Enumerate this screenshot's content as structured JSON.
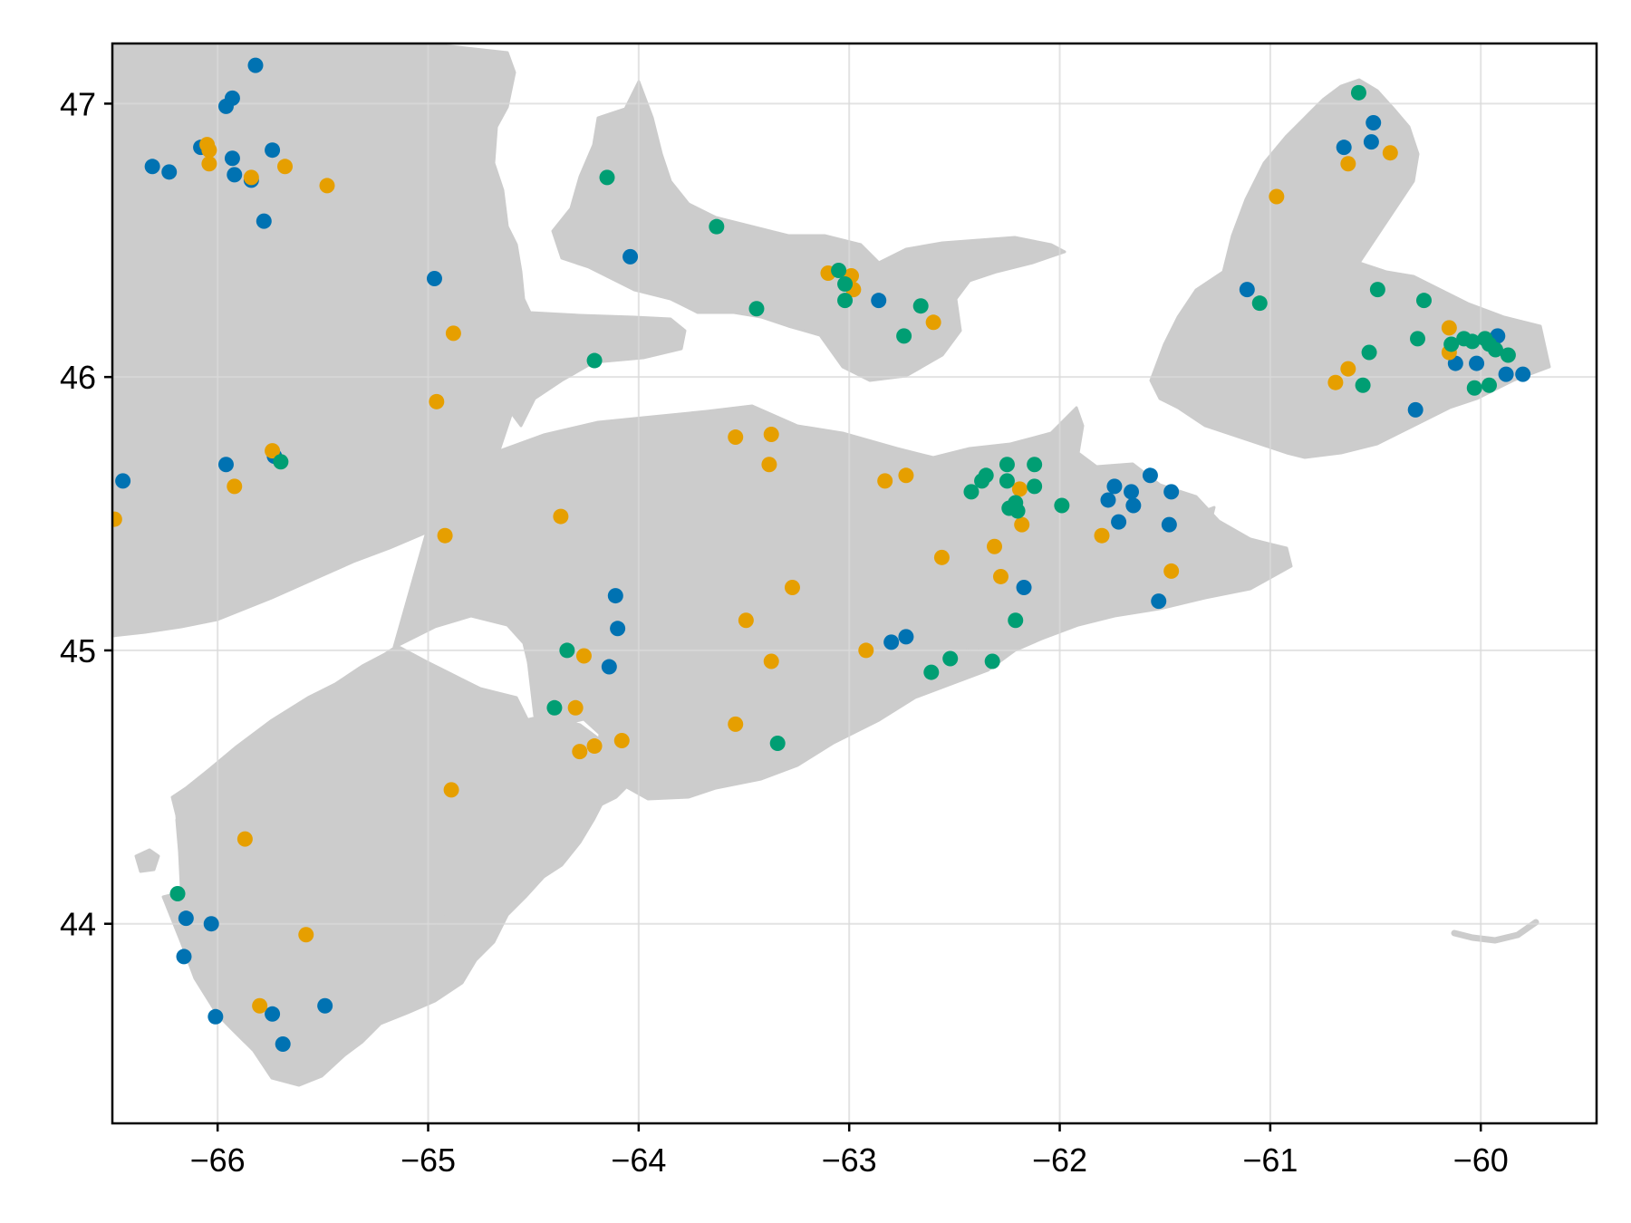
{
  "colors": {
    "land": "#cccccc",
    "grid": "#e3e3e3",
    "frame": "#000000",
    "series": [
      "#0072b2",
      "#e69f00",
      "#009e73"
    ]
  },
  "chart_data": {
    "type": "scatter",
    "xlim": [
      -66.5,
      -59.45
    ],
    "ylim": [
      43.27,
      47.22
    ],
    "grid": true,
    "x_ticks": [
      -66,
      -65,
      -64,
      -63,
      -62,
      -61,
      -60
    ],
    "y_ticks": [
      44,
      45,
      46,
      47
    ],
    "x_tick_labels": [
      "−66",
      "−65",
      "−64",
      "−63",
      "−62",
      "−61",
      "−60"
    ],
    "y_tick_labels": [
      "44",
      "45",
      "46",
      "47"
    ],
    "series": [
      {
        "points": [
          [
            -65.82,
            47.14
          ],
          [
            -65.93,
            47.02
          ],
          [
            -65.96,
            46.99
          ],
          [
            -66.08,
            46.84
          ],
          [
            -65.74,
            46.83
          ],
          [
            -66.31,
            46.77
          ],
          [
            -66.23,
            46.75
          ],
          [
            -65.93,
            46.8
          ],
          [
            -65.92,
            46.74
          ],
          [
            -65.84,
            46.72
          ],
          [
            -65.78,
            46.57
          ],
          [
            -64.04,
            46.44
          ],
          [
            -64.97,
            46.36
          ],
          [
            -62.86,
            46.28
          ],
          [
            -65.96,
            45.68
          ],
          [
            -65.73,
            45.71
          ],
          [
            -66.45,
            45.62
          ],
          [
            -64.11,
            45.2
          ],
          [
            -64.1,
            45.08
          ],
          [
            -64.14,
            44.94
          ],
          [
            -62.8,
            45.03
          ],
          [
            -62.73,
            45.05
          ],
          [
            -62.17,
            45.23
          ],
          [
            -61.57,
            45.64
          ],
          [
            -61.74,
            45.6
          ],
          [
            -61.66,
            45.58
          ],
          [
            -61.47,
            45.58
          ],
          [
            -61.77,
            45.55
          ],
          [
            -61.65,
            45.53
          ],
          [
            -61.72,
            45.47
          ],
          [
            -61.48,
            45.46
          ],
          [
            -61.53,
            45.18
          ],
          [
            -61.11,
            46.32
          ],
          [
            -60.65,
            46.84
          ],
          [
            -60.52,
            46.86
          ],
          [
            -60.51,
            46.93
          ],
          [
            -60.31,
            45.88
          ],
          [
            -60.12,
            46.05
          ],
          [
            -60.02,
            46.05
          ],
          [
            -59.92,
            46.15
          ],
          [
            -59.88,
            46.01
          ],
          [
            -59.8,
            46.01
          ],
          [
            -66.15,
            44.02
          ],
          [
            -66.03,
            44.0
          ],
          [
            -66.16,
            43.88
          ],
          [
            -66.01,
            43.66
          ],
          [
            -65.74,
            43.67
          ],
          [
            -65.69,
            43.56
          ],
          [
            -65.49,
            43.7
          ]
        ]
      },
      {
        "points": [
          [
            -66.05,
            46.85
          ],
          [
            -66.04,
            46.83
          ],
          [
            -66.04,
            46.78
          ],
          [
            -65.84,
            46.73
          ],
          [
            -65.68,
            46.77
          ],
          [
            -65.48,
            46.7
          ],
          [
            -64.88,
            46.16
          ],
          [
            -64.96,
            45.91
          ],
          [
            -63.1,
            46.38
          ],
          [
            -62.99,
            46.37
          ],
          [
            -62.98,
            46.32
          ],
          [
            -62.6,
            46.2
          ],
          [
            -63.54,
            45.78
          ],
          [
            -63.37,
            45.79
          ],
          [
            -63.38,
            45.68
          ],
          [
            -62.83,
            45.62
          ],
          [
            -62.73,
            45.64
          ],
          [
            -62.19,
            45.59
          ],
          [
            -62.18,
            45.46
          ],
          [
            -62.31,
            45.38
          ],
          [
            -62.56,
            45.34
          ],
          [
            -62.28,
            45.27
          ],
          [
            -61.8,
            45.42
          ],
          [
            -61.47,
            45.29
          ],
          [
            -63.27,
            45.23
          ],
          [
            -63.49,
            45.11
          ],
          [
            -63.37,
            44.96
          ],
          [
            -62.92,
            45.0
          ],
          [
            -64.26,
            44.98
          ],
          [
            -64.3,
            44.79
          ],
          [
            -64.28,
            44.63
          ],
          [
            -64.21,
            44.65
          ],
          [
            -64.08,
            44.67
          ],
          [
            -63.54,
            44.73
          ],
          [
            -64.37,
            45.49
          ],
          [
            -64.92,
            45.42
          ],
          [
            -66.49,
            45.48
          ],
          [
            -65.92,
            45.6
          ],
          [
            -65.74,
            45.73
          ],
          [
            -64.89,
            44.49
          ],
          [
            -65.87,
            44.31
          ],
          [
            -65.58,
            43.96
          ],
          [
            -65.8,
            43.7
          ],
          [
            -60.97,
            46.66
          ],
          [
            -60.63,
            46.78
          ],
          [
            -60.43,
            46.82
          ],
          [
            -60.69,
            45.98
          ],
          [
            -60.63,
            46.03
          ],
          [
            -60.15,
            46.18
          ],
          [
            -60.15,
            46.09
          ]
        ]
      },
      {
        "points": [
          [
            -64.15,
            46.73
          ],
          [
            -63.63,
            46.55
          ],
          [
            -63.05,
            46.39
          ],
          [
            -63.02,
            46.34
          ],
          [
            -63.02,
            46.28
          ],
          [
            -62.66,
            46.26
          ],
          [
            -62.74,
            46.15
          ],
          [
            -63.44,
            46.25
          ],
          [
            -64.21,
            46.06
          ],
          [
            -62.42,
            45.58
          ],
          [
            -62.37,
            45.62
          ],
          [
            -62.35,
            45.64
          ],
          [
            -62.25,
            45.68
          ],
          [
            -62.25,
            45.62
          ],
          [
            -62.21,
            45.54
          ],
          [
            -62.24,
            45.52
          ],
          [
            -62.2,
            45.51
          ],
          [
            -62.12,
            45.6
          ],
          [
            -62.12,
            45.68
          ],
          [
            -61.99,
            45.53
          ],
          [
            -62.21,
            45.11
          ],
          [
            -62.32,
            44.96
          ],
          [
            -62.52,
            44.97
          ],
          [
            -62.61,
            44.92
          ],
          [
            -63.34,
            44.66
          ],
          [
            -64.34,
            45.0
          ],
          [
            -64.4,
            44.79
          ],
          [
            -65.7,
            45.69
          ],
          [
            -66.19,
            44.11
          ],
          [
            -60.58,
            47.04
          ],
          [
            -61.05,
            46.27
          ],
          [
            -60.49,
            46.32
          ],
          [
            -60.27,
            46.28
          ],
          [
            -60.3,
            46.14
          ],
          [
            -60.53,
            46.09
          ],
          [
            -60.56,
            45.97
          ],
          [
            -60.14,
            46.12
          ],
          [
            -60.08,
            46.14
          ],
          [
            -60.04,
            46.13
          ],
          [
            -59.98,
            46.14
          ],
          [
            -59.96,
            46.12
          ],
          [
            -59.93,
            46.1
          ],
          [
            -59.87,
            46.08
          ],
          [
            -60.03,
            45.96
          ],
          [
            -59.96,
            45.97
          ]
        ]
      }
    ]
  }
}
